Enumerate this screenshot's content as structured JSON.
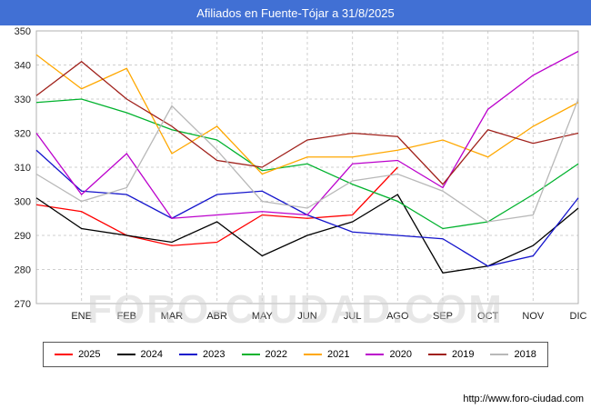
{
  "title": "Afiliados en Fuente-Tójar a 31/8/2025",
  "watermark": "FORO-CIUDAD.COM",
  "footer": {
    "url": "http://www.foro-ciudad.com"
  },
  "colors": {
    "header_bg": "#4170d4",
    "watermark": "#d0d0d0",
    "grid": "#cfcfcf",
    "plot_border": "#b0b0b0",
    "tick_text": "#222222"
  },
  "chart_data": {
    "type": "line",
    "title": "Afiliados en Fuente-Tójar a 31/8/2025",
    "xlabel": "",
    "ylabel": "",
    "ylim": [
      270,
      350
    ],
    "ytick_step": 10,
    "grid": true,
    "legend_position": "bottom",
    "x_labels": [
      "ENE",
      "FEB",
      "MAR",
      "ABR",
      "MAY",
      "JUN",
      "JUL",
      "AGO",
      "SEP",
      "OCT",
      "NOV",
      "DIC"
    ],
    "series": [
      {
        "name": "2025",
        "color": "#ff0000",
        "values": [
          299,
          297,
          290,
          287,
          288,
          296,
          295,
          296,
          310
        ]
      },
      {
        "name": "2024",
        "color": "#000000",
        "values": [
          301,
          292,
          290,
          288,
          294,
          284,
          290,
          294,
          302,
          279,
          281,
          287,
          298
        ]
      },
      {
        "name": "2023",
        "color": "#1414cc",
        "values": [
          315,
          303,
          302,
          295,
          302,
          303,
          296,
          291,
          290,
          289,
          281,
          284,
          301
        ]
      },
      {
        "name": "2022",
        "color": "#00b22d",
        "values": [
          329,
          330,
          326,
          321,
          318,
          309,
          311,
          305,
          300,
          292,
          294,
          302,
          311
        ]
      },
      {
        "name": "2021",
        "color": "#ffa800",
        "values": [
          343,
          333,
          339,
          314,
          322,
          308,
          313,
          313,
          315,
          318,
          313,
          322,
          329
        ]
      },
      {
        "name": "2020",
        "color": "#bb00cc",
        "values": [
          320,
          302,
          314,
          295,
          296,
          297,
          296,
          311,
          312,
          304,
          327,
          337,
          344
        ]
      },
      {
        "name": "2019",
        "color": "#a0201a",
        "values": [
          331,
          341,
          330,
          322,
          312,
          310,
          318,
          320,
          319,
          305,
          321,
          317,
          320
        ]
      },
      {
        "name": "2018",
        "color": "#b8b8b8",
        "values": [
          308,
          300,
          304,
          328,
          315,
          300,
          298,
          306,
          308,
          303,
          294,
          296,
          330
        ]
      }
    ]
  }
}
